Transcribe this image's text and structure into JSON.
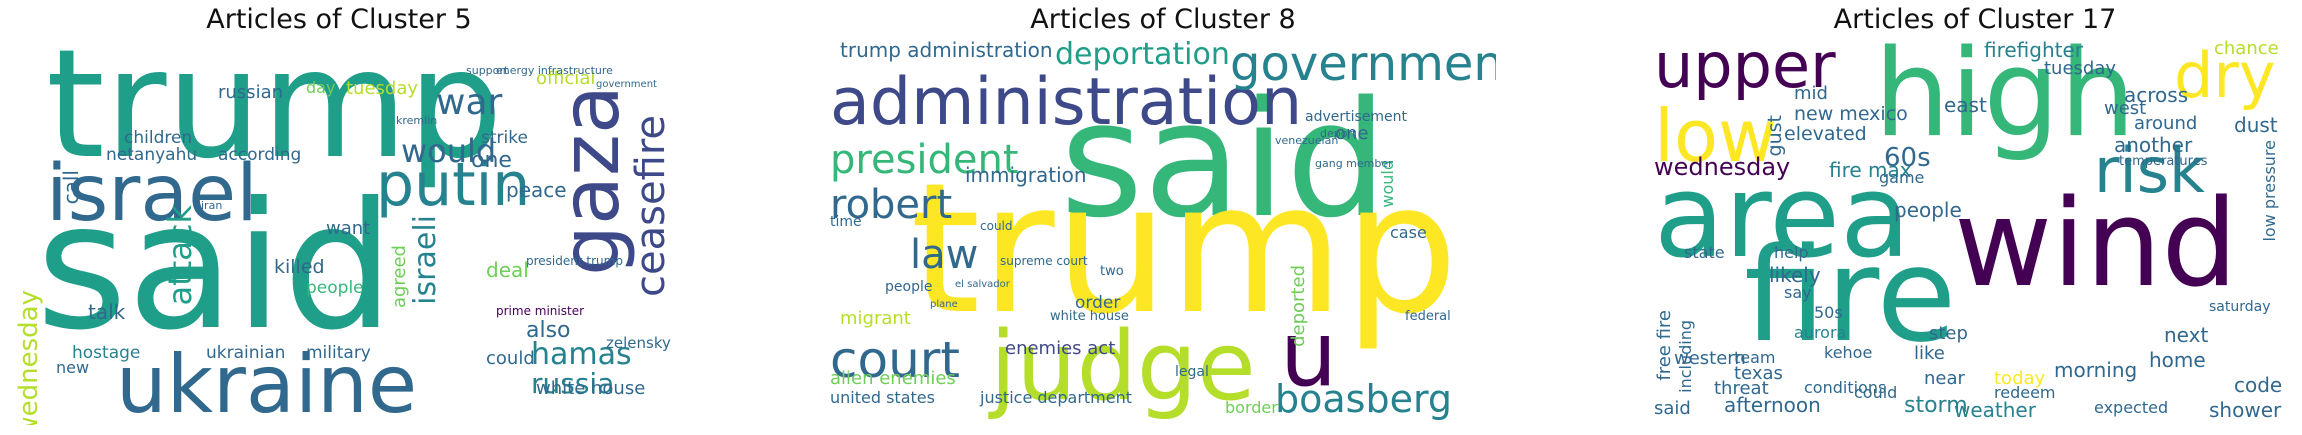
{
  "panels": [
    {
      "title": "Articles of Cluster 5",
      "words": [
        "trump",
        "said",
        "ukraine",
        "israel",
        "gaza",
        "putin",
        "ceasefire",
        "war",
        "hamas",
        "would",
        "russia",
        "attack",
        "israeli",
        "wednesday",
        "ukrainian",
        "military",
        "netanyahu",
        "according",
        "russian",
        "killed",
        "children",
        "hostage",
        "talk",
        "zelensky",
        "white house",
        "tuesday",
        "official",
        "also",
        "peace",
        "one",
        "could",
        "strike",
        "want",
        "deal",
        "agreed",
        "call",
        "day",
        "new",
        "people",
        "iran",
        "prime minister",
        "president trump",
        "energy infrastructure",
        "support",
        "government",
        "kremlin"
      ]
    },
    {
      "title": "Articles of Cluster 8",
      "words": [
        "said",
        "trump",
        "judge",
        "administration",
        "government",
        "president",
        "court",
        "law",
        "u",
        "boasberg",
        "robert",
        "deportation",
        "trump administration",
        "immigration",
        "deported",
        "order",
        "enemies act",
        "alien enemies",
        "united states",
        "justice department",
        "migrant",
        "case",
        "border",
        "federal",
        "advertisement",
        "time",
        "two",
        "one",
        "would",
        "white house",
        "supreme court",
        "could",
        "people",
        "plane",
        "el salvador",
        "legal",
        "venezuelan",
        "gang member",
        "deport"
      ]
    },
    {
      "title": "Articles of Cluster 17",
      "words": [
        "high",
        "fire",
        "wind",
        "area",
        "low",
        "upper",
        "risk",
        "dry",
        "firefighter",
        "wednesday",
        "new mexico",
        "elevated",
        "gust",
        "mid",
        "60s",
        "fire max",
        "people",
        "storm",
        "weather",
        "afternoon",
        "shower",
        "texas",
        "threat",
        "conditions",
        "team",
        "western",
        "state",
        "free fire",
        "including",
        "said",
        "aurora",
        "morning",
        "next",
        "home",
        "code",
        "saturday",
        "like",
        "step",
        "near",
        "another",
        "across",
        "west",
        "east",
        "game",
        "tuesday",
        "chance",
        "around",
        "dust",
        "temperatures",
        "likely",
        "help",
        "say",
        "50s",
        "kehoe",
        "today",
        "redeem",
        "could",
        "expected",
        "low pressure"
      ]
    }
  ],
  "palette": [
    "#440154",
    "#482878",
    "#3e4989",
    "#31688e",
    "#26828e",
    "#1f9e89",
    "#35b779",
    "#6ece58",
    "#b5de2b",
    "#fde725"
  ]
}
